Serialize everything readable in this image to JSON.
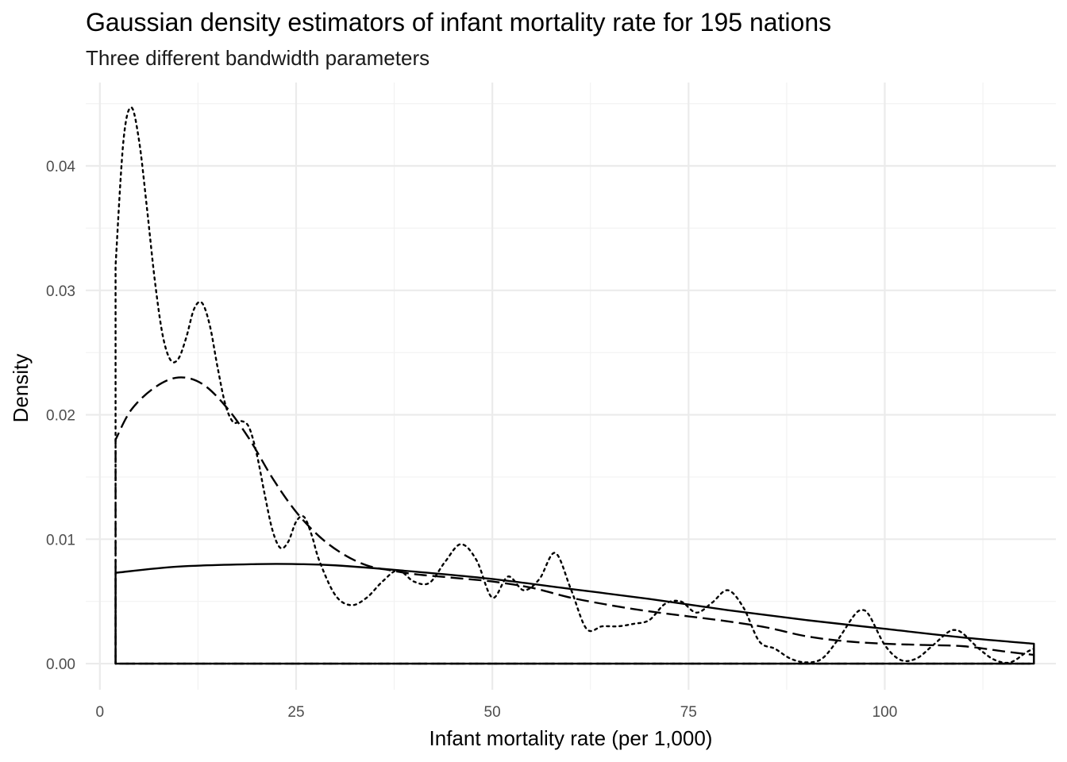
{
  "chart_data": {
    "type": "line",
    "title": "Gaussian density estimators of infant mortality rate for 195 nations",
    "subtitle": "Three different bandwidth parameters",
    "xlabel": "Infant mortality rate (per 1,000)",
    "ylabel": "Density",
    "xlim": [
      -1.8,
      121.8
    ],
    "ylim": [
      -0.0021,
      0.0467
    ],
    "x_ticks": [
      0,
      25,
      50,
      75,
      100
    ],
    "x_tick_labels": [
      "0",
      "25",
      "50",
      "75",
      "100"
    ],
    "y_ticks": [
      0.0,
      0.01,
      0.02,
      0.03,
      0.04
    ],
    "y_tick_labels": [
      "0.00",
      "0.01",
      "0.02",
      "0.03",
      "0.04"
    ],
    "grid": true,
    "legend": "none",
    "support": [
      2,
      119
    ],
    "series": [
      {
        "linetype": "solid",
        "x": [
          2,
          10,
          20,
          25,
          30,
          40,
          50,
          60,
          70,
          80,
          90,
          100,
          110,
          119
        ],
        "y": [
          0.0073,
          0.0078,
          0.008,
          0.008,
          0.0079,
          0.0074,
          0.0068,
          0.006,
          0.0052,
          0.0043,
          0.0035,
          0.0028,
          0.0021,
          0.0016
        ]
      },
      {
        "linetype": "dashed",
        "x": [
          2,
          4,
          7,
          10,
          13,
          16,
          19,
          22,
          25,
          28,
          31,
          34,
          37,
          40,
          45,
          50,
          55,
          60,
          65,
          70,
          75,
          80,
          85,
          90,
          95,
          100,
          105,
          110,
          115,
          119
        ],
        "y": [
          0.018,
          0.0204,
          0.0222,
          0.023,
          0.0225,
          0.0207,
          0.0181,
          0.0149,
          0.0122,
          0.0102,
          0.0088,
          0.0079,
          0.0075,
          0.0072,
          0.0069,
          0.0066,
          0.0061,
          0.0053,
          0.0047,
          0.0042,
          0.0038,
          0.0034,
          0.0029,
          0.0022,
          0.0018,
          0.0016,
          0.0015,
          0.0014,
          0.001,
          0.0007
        ]
      },
      {
        "linetype": "dotted",
        "x": [
          2,
          3,
          4,
          5,
          6,
          7,
          8,
          9,
          10,
          11,
          12,
          13,
          14,
          15,
          16,
          17,
          18,
          19,
          20,
          21,
          22,
          23,
          24,
          25,
          26,
          27,
          28,
          30,
          32,
          34,
          36,
          38,
          40,
          42,
          44,
          46,
          48,
          50,
          52,
          54,
          56,
          58,
          60,
          62,
          64,
          66,
          68,
          70,
          72,
          74,
          76,
          78,
          80,
          82,
          84,
          86,
          88,
          90,
          92,
          94,
          96,
          97,
          98,
          100,
          102,
          104,
          106,
          108,
          109,
          110,
          112,
          114,
          116,
          118,
          119
        ],
        "y": [
          0.032,
          0.042,
          0.0447,
          0.042,
          0.0366,
          0.0308,
          0.0264,
          0.0244,
          0.0245,
          0.0262,
          0.0285,
          0.029,
          0.0272,
          0.0238,
          0.0208,
          0.0194,
          0.0195,
          0.019,
          0.0168,
          0.0136,
          0.0107,
          0.0093,
          0.0098,
          0.0114,
          0.0118,
          0.0103,
          0.0082,
          0.0055,
          0.0047,
          0.0053,
          0.0066,
          0.0075,
          0.0066,
          0.0065,
          0.0082,
          0.0096,
          0.0083,
          0.0053,
          0.007,
          0.0059,
          0.0068,
          0.0089,
          0.006,
          0.0028,
          0.003,
          0.003,
          0.0032,
          0.0035,
          0.0048,
          0.005,
          0.0041,
          0.0049,
          0.0059,
          0.0045,
          0.0018,
          0.0012,
          0.0004,
          0.0001,
          0.0004,
          0.0019,
          0.0038,
          0.0043,
          0.0039,
          0.0015,
          0.0003,
          0.0004,
          0.0014,
          0.0025,
          0.0027,
          0.0024,
          0.0012,
          0.0003,
          0.0001,
          0.0009,
          0.0012
        ]
      }
    ]
  }
}
